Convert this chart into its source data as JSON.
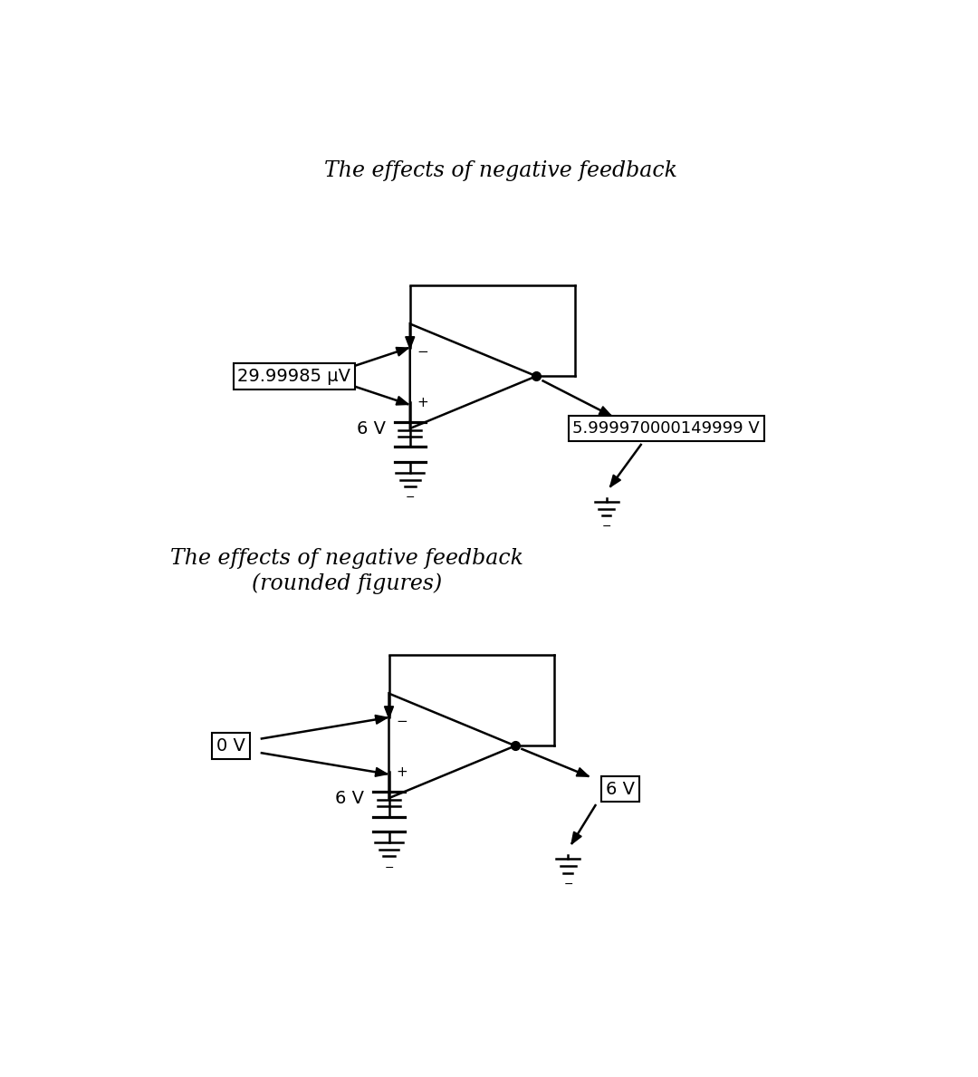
{
  "title1": "The effects of negative feedback",
  "title2": "The effects of negative feedback\n(rounded figures)",
  "label_input1": "29.99985 μV",
  "label_output1": "5.999970000149999 V",
  "label_source1": "6 V",
  "label_input2": "0 V",
  "label_output2": "6 V",
  "label_source2": "6 V",
  "bg_color": "#ffffff",
  "line_color": "#000000",
  "title_fontsize": 17,
  "label_fontsize": 14
}
